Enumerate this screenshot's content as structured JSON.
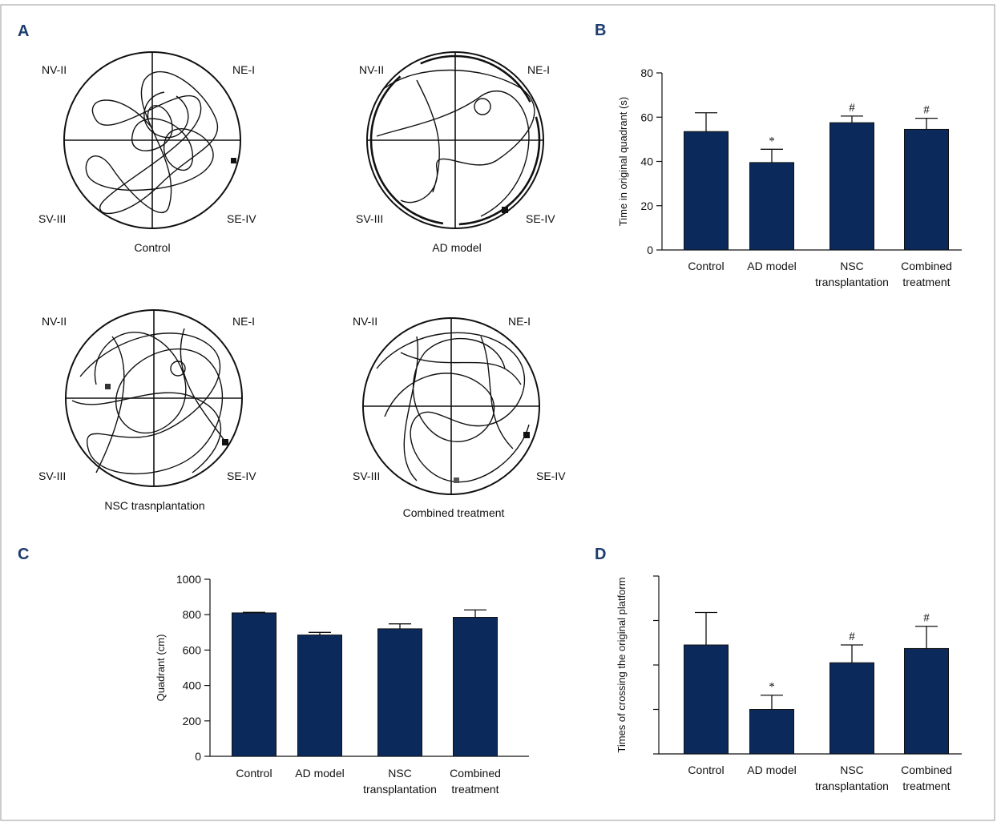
{
  "figure": {
    "colors": {
      "bar": "#0b2a5b",
      "border": "#9a9a9a",
      "letter": "#1c3c6e"
    },
    "panel_a": {
      "letter": "A",
      "quadrant_labels": {
        "nw": "NV-II",
        "ne": "NE-I",
        "sw": "SV-III",
        "se": "SE-IV"
      },
      "mazes": [
        {
          "title": "Control"
        },
        {
          "title": "AD model"
        },
        {
          "title": "NSC trasnplantation"
        },
        {
          "title": "Combined treatment"
        }
      ]
    }
  },
  "chart_data": [
    {
      "panel": "B",
      "type": "bar",
      "categories": [
        "Control",
        "AD model",
        "NSC transplantation",
        "Combined treatment"
      ],
      "category_lines": [
        [
          "Control"
        ],
        [
          "AD model"
        ],
        [
          "NSC",
          "transplantation"
        ],
        [
          "Combined",
          "treatment"
        ]
      ],
      "values": [
        53.5,
        39.5,
        57.5,
        54.5
      ],
      "errors": [
        8.5,
        6.0,
        3.0,
        5.0
      ],
      "annotations": [
        "",
        "*",
        "#",
        "#"
      ],
      "ylabel": "Time in original quadrant (s)",
      "ylim": [
        0,
        80
      ],
      "yticks": [
        0,
        20,
        40,
        60,
        80
      ],
      "ytick_labels": [
        "0",
        "20",
        "40",
        "60",
        "80"
      ]
    },
    {
      "panel": "C",
      "type": "bar",
      "categories": [
        "Control",
        "AD model",
        "NSC transplantation",
        "Combined treatment"
      ],
      "category_lines": [
        [
          "Control"
        ],
        [
          "AD model"
        ],
        [
          "NSC",
          "transplantation"
        ],
        [
          "Combined",
          "treatment"
        ]
      ],
      "values": [
        810,
        685,
        720,
        785
      ],
      "errors": [
        3,
        15,
        28,
        42
      ],
      "annotations": [
        "",
        "",
        "",
        ""
      ],
      "ylabel": "Quadrant (cm)",
      "ylim": [
        0,
        1000
      ],
      "yticks": [
        0,
        200,
        400,
        600,
        800,
        1000
      ],
      "ytick_labels": [
        "0",
        "200",
        "400",
        "600",
        "800",
        "1000"
      ]
    },
    {
      "panel": "D",
      "type": "bar",
      "categories": [
        "Control",
        "AD model",
        "NSC transplantation",
        "Combined treatment"
      ],
      "category_lines": [
        [
          "Control"
        ],
        [
          "AD model"
        ],
        [
          "NSC",
          "transplantation"
        ],
        [
          "Combined",
          "treatment"
        ]
      ],
      "values": [
        2.45,
        1.0,
        2.05,
        2.37
      ],
      "errors": [
        0.73,
        0.32,
        0.4,
        0.5
      ],
      "annotations": [
        "",
        "*",
        "#",
        "#"
      ],
      "ylabel": "Times of crossing the original platform",
      "ylim": [
        0,
        4
      ],
      "yticks": [
        0,
        1,
        2,
        3,
        4
      ],
      "ytick_labels": [
        "",
        "",
        "",
        "",
        ""
      ]
    }
  ]
}
